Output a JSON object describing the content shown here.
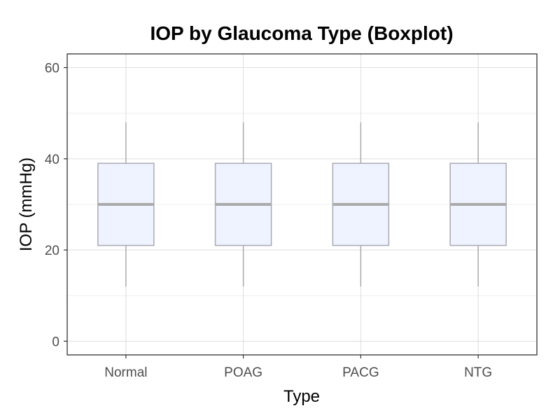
{
  "chart_data": {
    "type": "boxplot",
    "title": "IOP by Glaucoma Type (Boxplot)",
    "xlabel": "Type",
    "ylabel": "IOP (mmHg)",
    "categories": [
      "Normal",
      "POAG",
      "PACG",
      "NTG"
    ],
    "boxes": [
      {
        "category": "Normal",
        "min": 12,
        "q1": 21,
        "median": 30,
        "q3": 39,
        "max": 48
      },
      {
        "category": "POAG",
        "min": 12,
        "q1": 21,
        "median": 30,
        "q3": 39,
        "max": 48
      },
      {
        "category": "PACG",
        "min": 12,
        "q1": 21,
        "median": 30,
        "q3": 39,
        "max": 48
      },
      {
        "category": "NTG",
        "min": 12,
        "q1": 21,
        "median": 30,
        "q3": 39,
        "max": 48
      }
    ],
    "ylim": [
      -3,
      63
    ],
    "yticks": [
      0,
      20,
      40,
      60
    ],
    "ytick_labels": [
      "0",
      "20",
      "40",
      "60"
    ],
    "grid": true,
    "colors": {
      "box_fill": "#eef3ff",
      "box_border": "#a9a9b3",
      "median_line": "#aaaaaa",
      "whisker": "#aaaaaa",
      "grid_major": "#dedede",
      "grid_minor": "#efefef",
      "panel_border": "#333333",
      "tick_text": "#4d4d4d"
    }
  }
}
